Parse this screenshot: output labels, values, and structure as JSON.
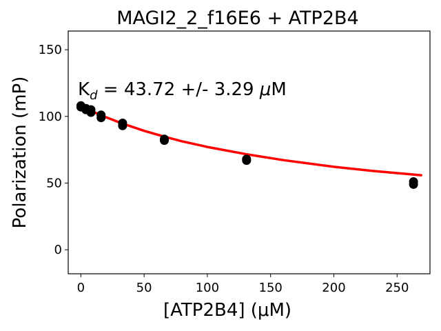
{
  "chart_data": {
    "type": "scatter",
    "title": "MAGI2_2_f16E6 + ATP2B4",
    "xlabel": "[ATP2B4] (μM)",
    "ylabel": "Polarization (mP)",
    "annotation": {
      "k": "K",
      "sub": "d",
      "rest": " = 43.72 +/- 3.29 ",
      "mu": "μ",
      "unit": "M"
    },
    "xlim": [
      -10,
      276
    ],
    "ylim": [
      -18,
      164
    ],
    "xticks": [
      0,
      50,
      100,
      150,
      200,
      250
    ],
    "yticks": [
      0,
      50,
      100,
      150
    ],
    "grid": false,
    "series": [
      {
        "kind": "points",
        "color": "#000000",
        "x": [
          0,
          0,
          4,
          4,
          8,
          8,
          16,
          16,
          33,
          33,
          66,
          66,
          131,
          131,
          263,
          263
        ],
        "y": [
          108,
          107,
          106,
          105,
          105,
          103,
          101,
          99,
          95,
          93,
          83,
          82,
          68,
          67,
          51,
          49
        ]
      },
      {
        "kind": "fit",
        "color": "#ff0000",
        "x": [
          0,
          10,
          20,
          33,
          50,
          66,
          80,
          100,
          131,
          160,
          200,
          230,
          269
        ],
        "y": [
          107.9,
          103.3,
          99.3,
          94.6,
          89.2,
          84.8,
          81.3,
          77.1,
          71.6,
          67.2,
          62.2,
          59.2,
          55.9
        ]
      }
    ]
  }
}
